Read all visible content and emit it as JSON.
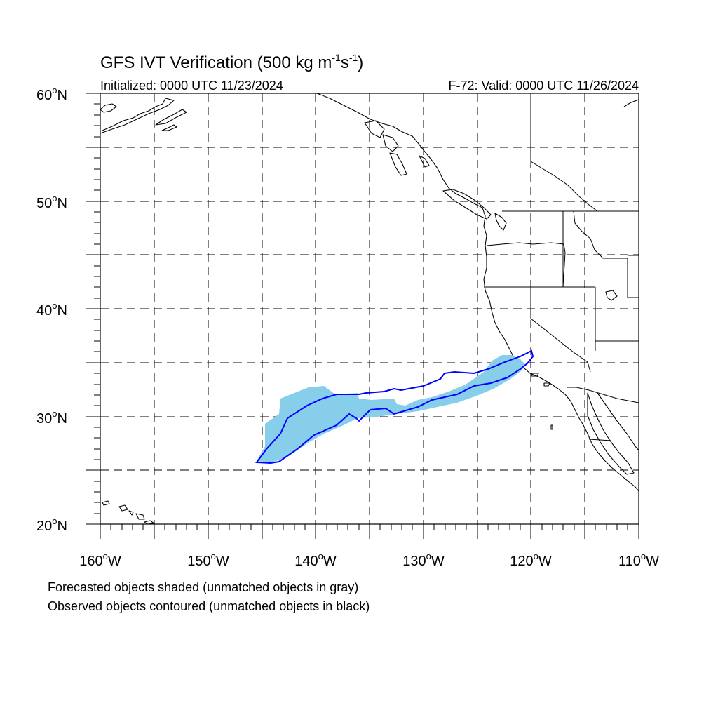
{
  "title": {
    "main": "GFS IVT Verification (500 kg m",
    "exp1": "-1",
    "mid": "s",
    "exp2": "-1",
    "end": ")"
  },
  "subtitle": {
    "initialized": "Initialized: 0000 UTC 11/23/2024",
    "valid": "F-72: Valid: 0000 UTC 11/26/2024"
  },
  "map": {
    "lon_range": [
      -160,
      -110
    ],
    "lat_range": [
      20,
      60
    ],
    "forecast_fill_color": "#87CEEB",
    "observed_contour_color": "#0000FF"
  },
  "axes": {
    "lat_labels": [
      {
        "text": "60",
        "unit": "o",
        "hemi": "N"
      },
      {
        "text": "50",
        "unit": "o",
        "hemi": "N"
      },
      {
        "text": "40",
        "unit": "o",
        "hemi": "N"
      },
      {
        "text": "30",
        "unit": "o",
        "hemi": "N"
      },
      {
        "text": "20",
        "unit": "o",
        "hemi": "N"
      }
    ],
    "lon_labels": [
      {
        "text": "160",
        "unit": "o",
        "hemi": "W"
      },
      {
        "text": "150",
        "unit": "o",
        "hemi": "W"
      },
      {
        "text": "140",
        "unit": "o",
        "hemi": "W"
      },
      {
        "text": "130",
        "unit": "o",
        "hemi": "W"
      },
      {
        "text": "120",
        "unit": "o",
        "hemi": "W"
      },
      {
        "text": "110",
        "unit": "o",
        "hemi": "W"
      }
    ]
  },
  "caption": {
    "line1": "Forecasted objects shaded (unmatched objects in gray)",
    "line2": "Observed objects contoured (unmatched objects in black)"
  }
}
